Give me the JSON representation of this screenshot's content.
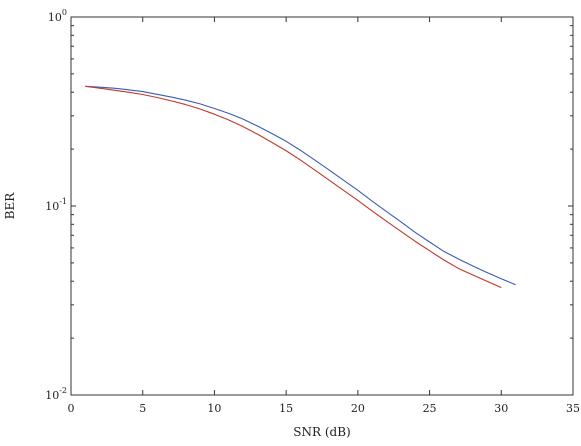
{
  "chart_data": {
    "type": "line",
    "title": "",
    "xlabel": "SNR (dB)",
    "ylabel": "BER",
    "xlim": [
      0,
      35
    ],
    "ylim": [
      0.01,
      1
    ],
    "yscale": "log",
    "grid": false,
    "x_ticks": [
      {
        "value": 0,
        "label": "0"
      },
      {
        "value": 5,
        "label": "5"
      },
      {
        "value": 10,
        "label": "10"
      },
      {
        "value": 15,
        "label": "15"
      },
      {
        "value": 20,
        "label": "20"
      },
      {
        "value": 25,
        "label": "25"
      },
      {
        "value": 30,
        "label": "30"
      },
      {
        "value": 35,
        "label": "35"
      }
    ],
    "y_ticks": [
      {
        "value": 1,
        "base": "10",
        "exp": "0"
      },
      {
        "value": 0.1,
        "base": "10",
        "exp": "-1"
      },
      {
        "value": 0.01,
        "base": "10",
        "exp": "-2"
      }
    ],
    "series": [
      {
        "color": "#3b5bb8",
        "x": [
          1,
          2,
          3,
          4,
          5,
          6,
          7,
          8,
          9,
          10,
          11,
          12,
          13,
          14,
          15,
          16,
          17,
          18,
          19,
          20,
          21,
          22,
          23,
          24,
          25,
          26,
          27,
          28,
          29,
          30,
          31
        ],
        "y": [
          0.43,
          0.425,
          0.42,
          0.412,
          0.403,
          0.39,
          0.377,
          0.363,
          0.347,
          0.328,
          0.309,
          0.288,
          0.265,
          0.242,
          0.22,
          0.197,
          0.175,
          0.155,
          0.137,
          0.121,
          0.106,
          0.0935,
          0.0825,
          0.0725,
          0.0645,
          0.0575,
          0.0525,
          0.0482,
          0.0445,
          0.0412,
          0.0383
        ]
      },
      {
        "color": "#c0392b",
        "x": [
          1,
          2,
          3,
          4,
          5,
          6,
          7,
          8,
          9,
          10,
          11,
          12,
          13,
          14,
          15,
          16,
          17,
          18,
          19,
          20,
          21,
          22,
          23,
          24,
          25,
          26,
          27,
          28,
          29,
          30
        ],
        "y": [
          0.43,
          0.42,
          0.41,
          0.4,
          0.389,
          0.375,
          0.36,
          0.344,
          0.326,
          0.306,
          0.285,
          0.263,
          0.24,
          0.217,
          0.196,
          0.175,
          0.155,
          0.137,
          0.121,
          0.107,
          0.094,
          0.083,
          0.0735,
          0.065,
          0.058,
          0.0518,
          0.0468,
          0.0432,
          0.04,
          0.037
        ]
      }
    ]
  }
}
